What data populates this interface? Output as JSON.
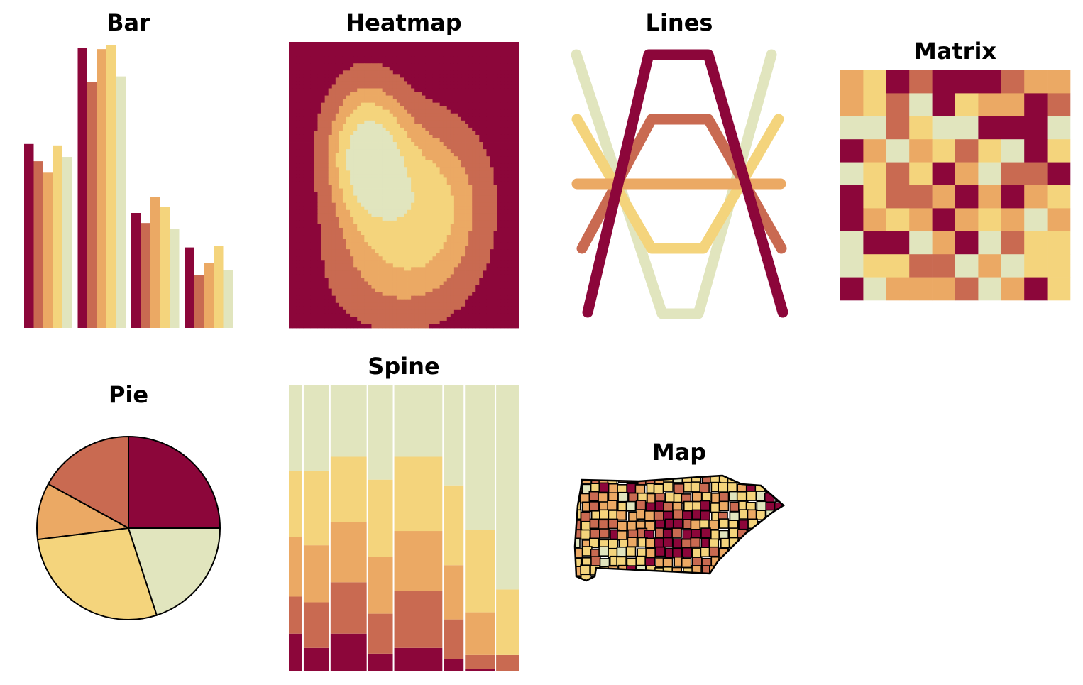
{
  "palette": [
    "#8c063a",
    "#c96a51",
    "#eba964",
    "#f4d47c",
    "#e1e5be"
  ],
  "chart_data": [
    {
      "type": "bar",
      "title": "Bar",
      "axes": "off",
      "grid": false,
      "ylim": [
        0,
        10
      ],
      "groups": [
        [
          6.4,
          5.8,
          5.4,
          6.35,
          5.95
        ],
        [
          9.75,
          8.55,
          9.7,
          9.85,
          8.75
        ],
        [
          4.0,
          3.65,
          4.55,
          4.2,
          3.45
        ],
        [
          2.8,
          1.85,
          2.25,
          2.85,
          2.0
        ]
      ]
    },
    {
      "type": "heatmap",
      "title": "Heatmap",
      "axes": "off",
      "levels": 5,
      "description_of_field": "contour-like bands from high (light) center-left to low (dark) edges"
    },
    {
      "type": "line",
      "title": "Lines",
      "axes": "off",
      "x": [
        0,
        1,
        2,
        3,
        4
      ],
      "series": [
        {
          "values": [
            0,
            4,
            4,
            0,
            0
          ]
        },
        {
          "values": [
            1,
            3,
            3,
            1,
            1
          ]
        },
        {
          "values": [
            2,
            2,
            2,
            2,
            2
          ]
        },
        {
          "values": [
            3,
            1,
            1,
            3,
            3
          ]
        },
        {
          "values": [
            4,
            0,
            0,
            4,
            4
          ]
        }
      ]
    },
    {
      "type": "heatmap",
      "title": "Matrix",
      "axes": "off",
      "levels": 5,
      "matrix": [
        [
          2,
          3,
          0,
          1,
          0,
          0,
          0,
          1,
          2,
          2
        ],
        [
          2,
          3,
          1,
          4,
          0,
          3,
          2,
          2,
          0,
          1
        ],
        [
          4,
          4,
          1,
          3,
          4,
          4,
          0,
          0,
          0,
          4
        ],
        [
          0,
          2,
          4,
          2,
          3,
          1,
          3,
          4,
          0,
          3
        ],
        [
          4,
          3,
          1,
          3,
          0,
          2,
          4,
          1,
          1,
          0
        ],
        [
          0,
          3,
          1,
          1,
          2,
          0,
          2,
          0,
          2,
          3
        ],
        [
          0,
          2,
          3,
          2,
          0,
          2,
          3,
          2,
          4,
          2
        ],
        [
          4,
          0,
          0,
          4,
          2,
          0,
          4,
          1,
          3,
          3
        ],
        [
          4,
          3,
          3,
          1,
          1,
          4,
          2,
          4,
          3,
          3
        ],
        [
          0,
          4,
          2,
          2,
          2,
          1,
          4,
          2,
          0,
          3
        ]
      ]
    },
    {
      "type": "pie",
      "title": "Pie",
      "values": [
        25,
        17,
        10,
        28,
        20
      ]
    },
    {
      "type": "bar",
      "subtype": "spine",
      "title": "Spine",
      "axes": "off",
      "widths": [
        19,
        36,
        51,
        35,
        68,
        28,
        42,
        32
      ],
      "stacks": [
        [
          13,
          13,
          21,
          23,
          30
        ],
        [
          8,
          16,
          20,
          26,
          30
        ],
        [
          13,
          18,
          21,
          23,
          25
        ],
        [
          6,
          14,
          20,
          27,
          33
        ],
        [
          8,
          20,
          21,
          26,
          25
        ],
        [
          4,
          14,
          19,
          28,
          35
        ],
        [
          0.5,
          5,
          15,
          29,
          50.5
        ],
        [
          0,
          5.5,
          0,
          23,
          71.5
        ]
      ]
    },
    {
      "type": "map",
      "title": "Map",
      "region": "counties choropleth",
      "levels": 5
    }
  ]
}
